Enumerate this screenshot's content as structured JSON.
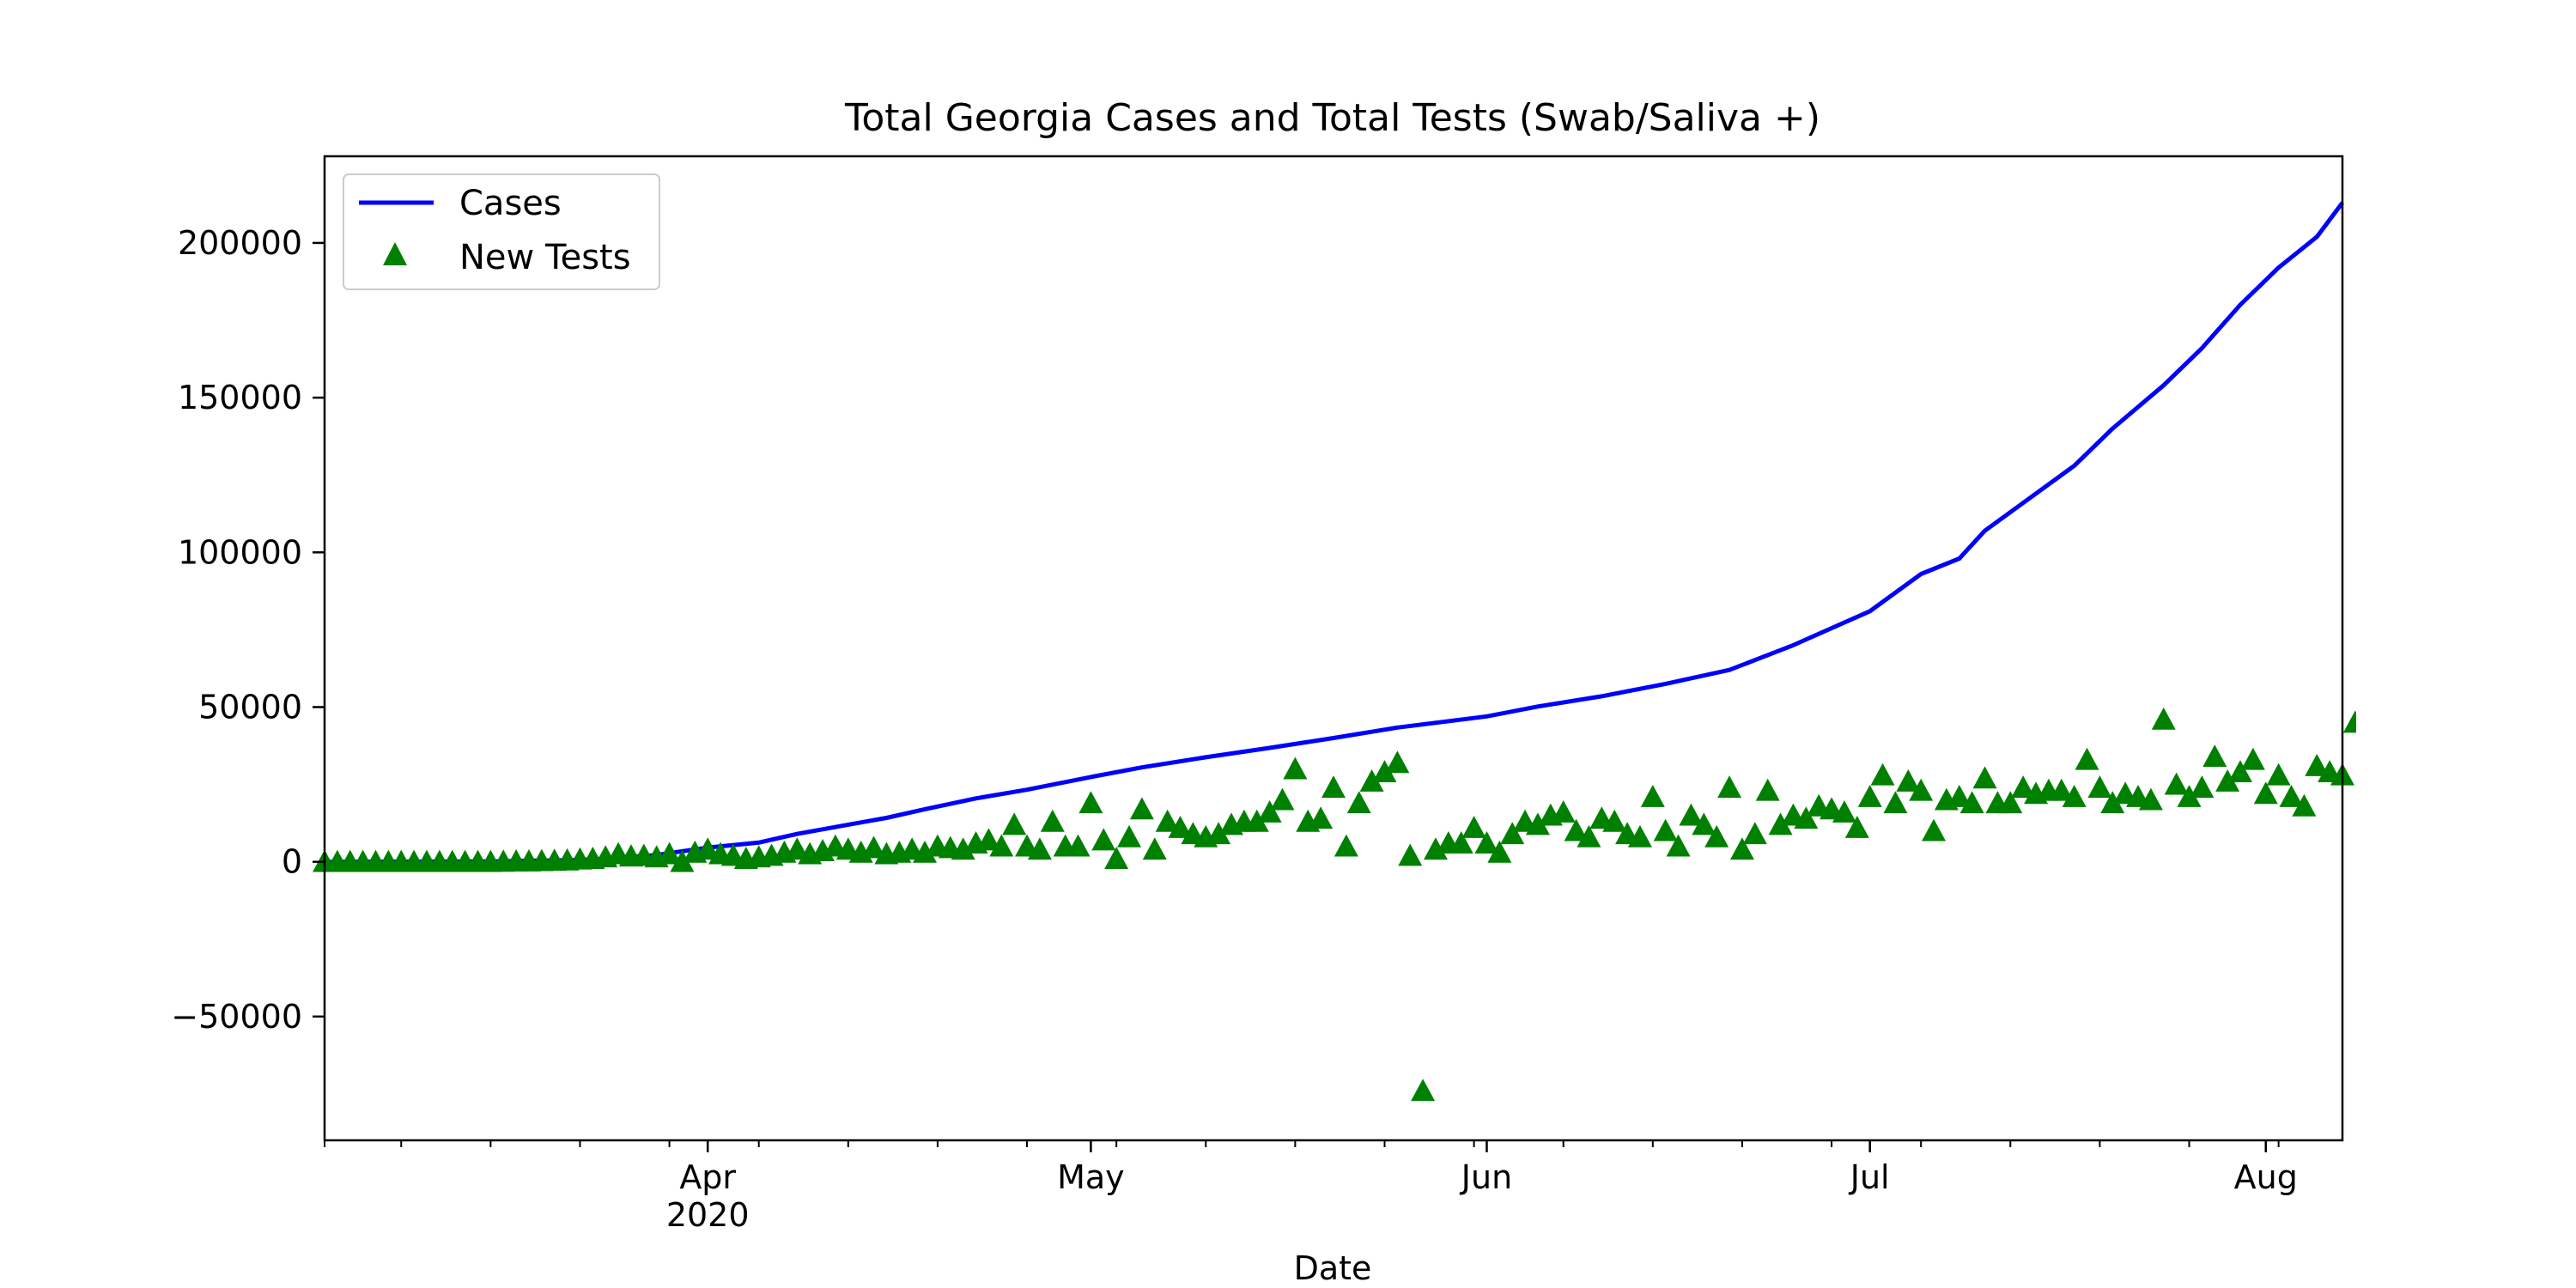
{
  "chart_data": {
    "type": "line",
    "title": "Total Georgia Cases and Total Tests (Swab/Saliva +)",
    "xlabel": "Date",
    "ylabel": "",
    "x_range": [
      "2020-03-02",
      "2020-08-07"
    ],
    "ylim": [
      -90000,
      228000
    ],
    "y_ticks": [
      -50000,
      0,
      50000,
      100000,
      150000,
      200000
    ],
    "y_tick_labels": [
      "−50000",
      "0",
      "50000",
      "100000",
      "150000",
      "200000"
    ],
    "x_ticks": [
      {
        "date": "2020-04-01",
        "label": "Apr",
        "sublabel": "2020"
      },
      {
        "date": "2020-05-01",
        "label": "May",
        "sublabel": ""
      },
      {
        "date": "2020-06-01",
        "label": "Jun",
        "sublabel": ""
      },
      {
        "date": "2020-07-01",
        "label": "Jul",
        "sublabel": ""
      },
      {
        "date": "2020-08-01",
        "label": "Aug",
        "sublabel": ""
      }
    ],
    "grid": false,
    "legend_position": "top-left",
    "series": [
      {
        "name": "Cases",
        "type": "line",
        "color": "#0000ff",
        "points": [
          [
            "2020-03-02",
            0
          ],
          [
            "2020-03-15",
            99
          ],
          [
            "2020-03-22",
            600
          ],
          [
            "2020-03-25",
            1200
          ],
          [
            "2020-03-28",
            2200
          ],
          [
            "2020-04-01",
            4600
          ],
          [
            "2020-04-05",
            6200
          ],
          [
            "2020-04-08",
            9000
          ],
          [
            "2020-04-12",
            12000
          ],
          [
            "2020-04-15",
            14200
          ],
          [
            "2020-04-18",
            17000
          ],
          [
            "2020-04-22",
            20500
          ],
          [
            "2020-04-26",
            23300
          ],
          [
            "2020-05-01",
            27400
          ],
          [
            "2020-05-05",
            30500
          ],
          [
            "2020-05-10",
            33800
          ],
          [
            "2020-05-15",
            36800
          ],
          [
            "2020-05-20",
            40000
          ],
          [
            "2020-05-25",
            43400
          ],
          [
            "2020-06-01",
            47000
          ],
          [
            "2020-06-05",
            50200
          ],
          [
            "2020-06-10",
            53500
          ],
          [
            "2020-06-15",
            57500
          ],
          [
            "2020-06-20",
            62000
          ],
          [
            "2020-06-25",
            70000
          ],
          [
            "2020-07-01",
            81000
          ],
          [
            "2020-07-05",
            93000
          ],
          [
            "2020-07-08",
            98000
          ],
          [
            "2020-07-10",
            107000
          ],
          [
            "2020-07-13",
            116000
          ],
          [
            "2020-07-17",
            128000
          ],
          [
            "2020-07-20",
            140000
          ],
          [
            "2020-07-24",
            154000
          ],
          [
            "2020-07-27",
            166000
          ],
          [
            "2020-07-30",
            180000
          ],
          [
            "2020-08-02",
            192000
          ],
          [
            "2020-08-05",
            202000
          ],
          [
            "2020-08-07",
            213000
          ]
        ]
      },
      {
        "name": "New Tests",
        "type": "scatter",
        "color": "#008000",
        "points": [
          [
            "2020-03-02",
            0
          ],
          [
            "2020-03-03",
            0
          ],
          [
            "2020-03-04",
            0
          ],
          [
            "2020-03-05",
            0
          ],
          [
            "2020-03-06",
            0
          ],
          [
            "2020-03-07",
            0
          ],
          [
            "2020-03-08",
            0
          ],
          [
            "2020-03-09",
            0
          ],
          [
            "2020-03-10",
            0
          ],
          [
            "2020-03-11",
            0
          ],
          [
            "2020-03-12",
            0
          ],
          [
            "2020-03-13",
            0
          ],
          [
            "2020-03-14",
            0
          ],
          [
            "2020-03-15",
            0
          ],
          [
            "2020-03-16",
            100
          ],
          [
            "2020-03-17",
            200
          ],
          [
            "2020-03-18",
            200
          ],
          [
            "2020-03-19",
            300
          ],
          [
            "2020-03-20",
            400
          ],
          [
            "2020-03-21",
            500
          ],
          [
            "2020-03-22",
            800
          ],
          [
            "2020-03-23",
            1000
          ],
          [
            "2020-03-24",
            1500
          ],
          [
            "2020-03-25",
            2500
          ],
          [
            "2020-03-26",
            1800
          ],
          [
            "2020-03-27",
            2000
          ],
          [
            "2020-03-28",
            1500
          ],
          [
            "2020-03-29",
            2500
          ],
          [
            "2020-03-30",
            0
          ],
          [
            "2020-03-31",
            3000
          ],
          [
            "2020-04-01",
            4000
          ],
          [
            "2020-04-02",
            2500
          ],
          [
            "2020-04-03",
            2000
          ],
          [
            "2020-04-04",
            1000
          ],
          [
            "2020-04-05",
            1500
          ],
          [
            "2020-04-06",
            2000
          ],
          [
            "2020-04-07",
            3000
          ],
          [
            "2020-04-08",
            4000
          ],
          [
            "2020-04-09",
            2500
          ],
          [
            "2020-04-10",
            3500
          ],
          [
            "2020-04-11",
            5000
          ],
          [
            "2020-04-12",
            4000
          ],
          [
            "2020-04-13",
            3000
          ],
          [
            "2020-04-14",
            4500
          ],
          [
            "2020-04-15",
            2500
          ],
          [
            "2020-04-16",
            3000
          ],
          [
            "2020-04-17",
            4000
          ],
          [
            "2020-04-18",
            3000
          ],
          [
            "2020-04-19",
            5000
          ],
          [
            "2020-04-20",
            4500
          ],
          [
            "2020-04-21",
            4000
          ],
          [
            "2020-04-22",
            6000
          ],
          [
            "2020-04-23",
            7000
          ],
          [
            "2020-04-24",
            5000
          ],
          [
            "2020-04-25",
            12000
          ],
          [
            "2020-04-26",
            5000
          ],
          [
            "2020-04-27",
            4000
          ],
          [
            "2020-04-28",
            13000
          ],
          [
            "2020-04-29",
            5000
          ],
          [
            "2020-04-30",
            5000
          ],
          [
            "2020-05-01",
            19000
          ],
          [
            "2020-05-02",
            7000
          ],
          [
            "2020-05-03",
            1000
          ],
          [
            "2020-05-04",
            8000
          ],
          [
            "2020-05-05",
            17000
          ],
          [
            "2020-05-06",
            4000
          ],
          [
            "2020-05-07",
            13000
          ],
          [
            "2020-05-08",
            11000
          ],
          [
            "2020-05-09",
            9000
          ],
          [
            "2020-05-10",
            8000
          ],
          [
            "2020-05-11",
            9000
          ],
          [
            "2020-05-12",
            12000
          ],
          [
            "2020-05-13",
            13000
          ],
          [
            "2020-05-14",
            13000
          ],
          [
            "2020-05-15",
            16000
          ],
          [
            "2020-05-16",
            20000
          ],
          [
            "2020-05-17",
            30000
          ],
          [
            "2020-05-18",
            13000
          ],
          [
            "2020-05-19",
            14000
          ],
          [
            "2020-05-20",
            24000
          ],
          [
            "2020-05-21",
            5000
          ],
          [
            "2020-05-22",
            19000
          ],
          [
            "2020-05-23",
            26000
          ],
          [
            "2020-05-24",
            29000
          ],
          [
            "2020-05-25",
            32000
          ],
          [
            "2020-05-26",
            2000
          ],
          [
            "2020-05-27",
            -74000
          ],
          [
            "2020-05-28",
            4000
          ],
          [
            "2020-05-29",
            6000
          ],
          [
            "2020-05-30",
            6000
          ],
          [
            "2020-05-31",
            11000
          ],
          [
            "2020-06-01",
            6000
          ],
          [
            "2020-06-02",
            3000
          ],
          [
            "2020-06-03",
            9000
          ],
          [
            "2020-06-04",
            13000
          ],
          [
            "2020-06-05",
            12000
          ],
          [
            "2020-06-06",
            15000
          ],
          [
            "2020-06-07",
            16000
          ],
          [
            "2020-06-08",
            10000
          ],
          [
            "2020-06-09",
            8000
          ],
          [
            "2020-06-10",
            14000
          ],
          [
            "2020-06-11",
            13000
          ],
          [
            "2020-06-12",
            9000
          ],
          [
            "2020-06-13",
            8000
          ],
          [
            "2020-06-14",
            21000
          ],
          [
            "2020-06-15",
            10000
          ],
          [
            "2020-06-16",
            5000
          ],
          [
            "2020-06-17",
            15000
          ],
          [
            "2020-06-18",
            12000
          ],
          [
            "2020-06-19",
            8000
          ],
          [
            "2020-06-20",
            24000
          ],
          [
            "2020-06-21",
            4000
          ],
          [
            "2020-06-22",
            9000
          ],
          [
            "2020-06-23",
            23000
          ],
          [
            "2020-06-24",
            12000
          ],
          [
            "2020-06-25",
            15000
          ],
          [
            "2020-06-26",
            14000
          ],
          [
            "2020-06-27",
            18000
          ],
          [
            "2020-06-28",
            17000
          ],
          [
            "2020-06-29",
            16000
          ],
          [
            "2020-06-30",
            11000
          ],
          [
            "2020-07-01",
            21000
          ],
          [
            "2020-07-02",
            28000
          ],
          [
            "2020-07-03",
            19000
          ],
          [
            "2020-07-04",
            26000
          ],
          [
            "2020-07-05",
            23000
          ],
          [
            "2020-07-06",
            10000
          ],
          [
            "2020-07-07",
            20000
          ],
          [
            "2020-07-08",
            21000
          ],
          [
            "2020-07-09",
            19000
          ],
          [
            "2020-07-10",
            27000
          ],
          [
            "2020-07-11",
            19000
          ],
          [
            "2020-07-12",
            19000
          ],
          [
            "2020-07-13",
            24000
          ],
          [
            "2020-07-14",
            22000
          ],
          [
            "2020-07-15",
            23000
          ],
          [
            "2020-07-16",
            23000
          ],
          [
            "2020-07-17",
            21000
          ],
          [
            "2020-07-18",
            33000
          ],
          [
            "2020-07-19",
            24000
          ],
          [
            "2020-07-20",
            19000
          ],
          [
            "2020-07-21",
            22000
          ],
          [
            "2020-07-22",
            21000
          ],
          [
            "2020-07-23",
            20000
          ],
          [
            "2020-07-24",
            46000
          ],
          [
            "2020-07-25",
            25000
          ],
          [
            "2020-07-26",
            21000
          ],
          [
            "2020-07-27",
            24000
          ],
          [
            "2020-07-28",
            34000
          ],
          [
            "2020-07-29",
            26000
          ],
          [
            "2020-07-30",
            29000
          ],
          [
            "2020-07-31",
            33000
          ],
          [
            "2020-08-01",
            22000
          ],
          [
            "2020-08-02",
            28000
          ],
          [
            "2020-08-03",
            21000
          ],
          [
            "2020-08-04",
            18000
          ],
          [
            "2020-08-05",
            31000
          ],
          [
            "2020-08-06",
            29000
          ],
          [
            "2020-08-07",
            28000
          ],
          [
            "2020-08-08",
            45000
          ]
        ]
      }
    ]
  }
}
